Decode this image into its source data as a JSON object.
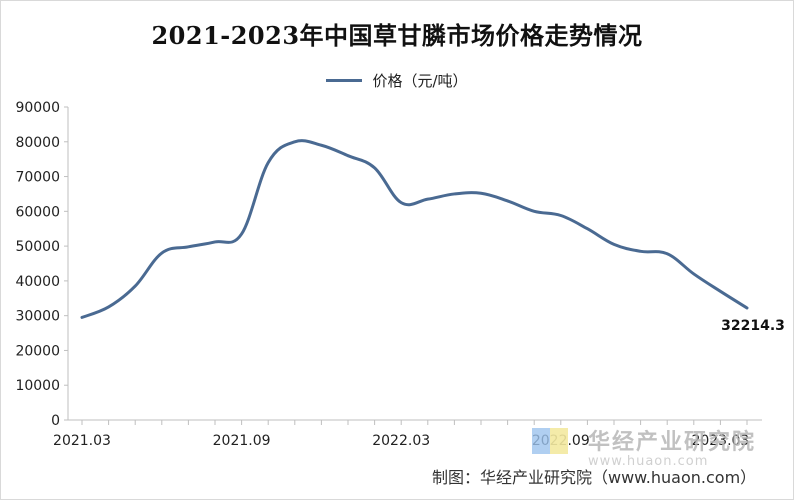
{
  "chart_data": {
    "type": "line",
    "title": "2021-2023年中国草甘膦市场价格走势情况",
    "xlabel": "",
    "ylabel": "",
    "ylim": [
      0,
      90000
    ],
    "yticks": [
      0,
      10000,
      20000,
      30000,
      40000,
      50000,
      60000,
      70000,
      80000,
      90000
    ],
    "x_tick_labels": [
      "2021.03",
      "2021.09",
      "2022.03",
      "2022.09",
      "2023.03"
    ],
    "legend_position": "top",
    "grid": false,
    "series": [
      {
        "name": "价格（元/吨）",
        "color": "#4a6a92",
        "x": [
          "2021.03",
          "2021.04",
          "2021.05",
          "2021.06",
          "2021.07",
          "2021.08",
          "2021.09",
          "2021.10",
          "2021.11",
          "2021.12",
          "2022.01",
          "2022.02",
          "2022.03",
          "2022.04",
          "2022.05",
          "2022.06",
          "2022.07",
          "2022.08",
          "2022.09",
          "2022.10",
          "2022.11",
          "2022.12",
          "2023.01",
          "2023.02",
          "2023.03",
          "2023.04"
        ],
        "values": [
          29500,
          32500,
          38500,
          48000,
          49800,
          51200,
          53500,
          74000,
          80000,
          79000,
          76000,
          72500,
          62500,
          63500,
          65000,
          65200,
          63000,
          60000,
          58800,
          55000,
          50500,
          48500,
          47800,
          42000,
          37000,
          32214.3
        ]
      }
    ],
    "annotations": [
      {
        "text": "32214.3",
        "series": 0,
        "point": "last"
      }
    ]
  },
  "legend": {
    "label": "价格（元/吨）"
  },
  "credit": "制图：华经产业研究院（www.huaon.com）",
  "watermark": {
    "brand": "华经产业研究院",
    "url": "www.huaon.com"
  }
}
